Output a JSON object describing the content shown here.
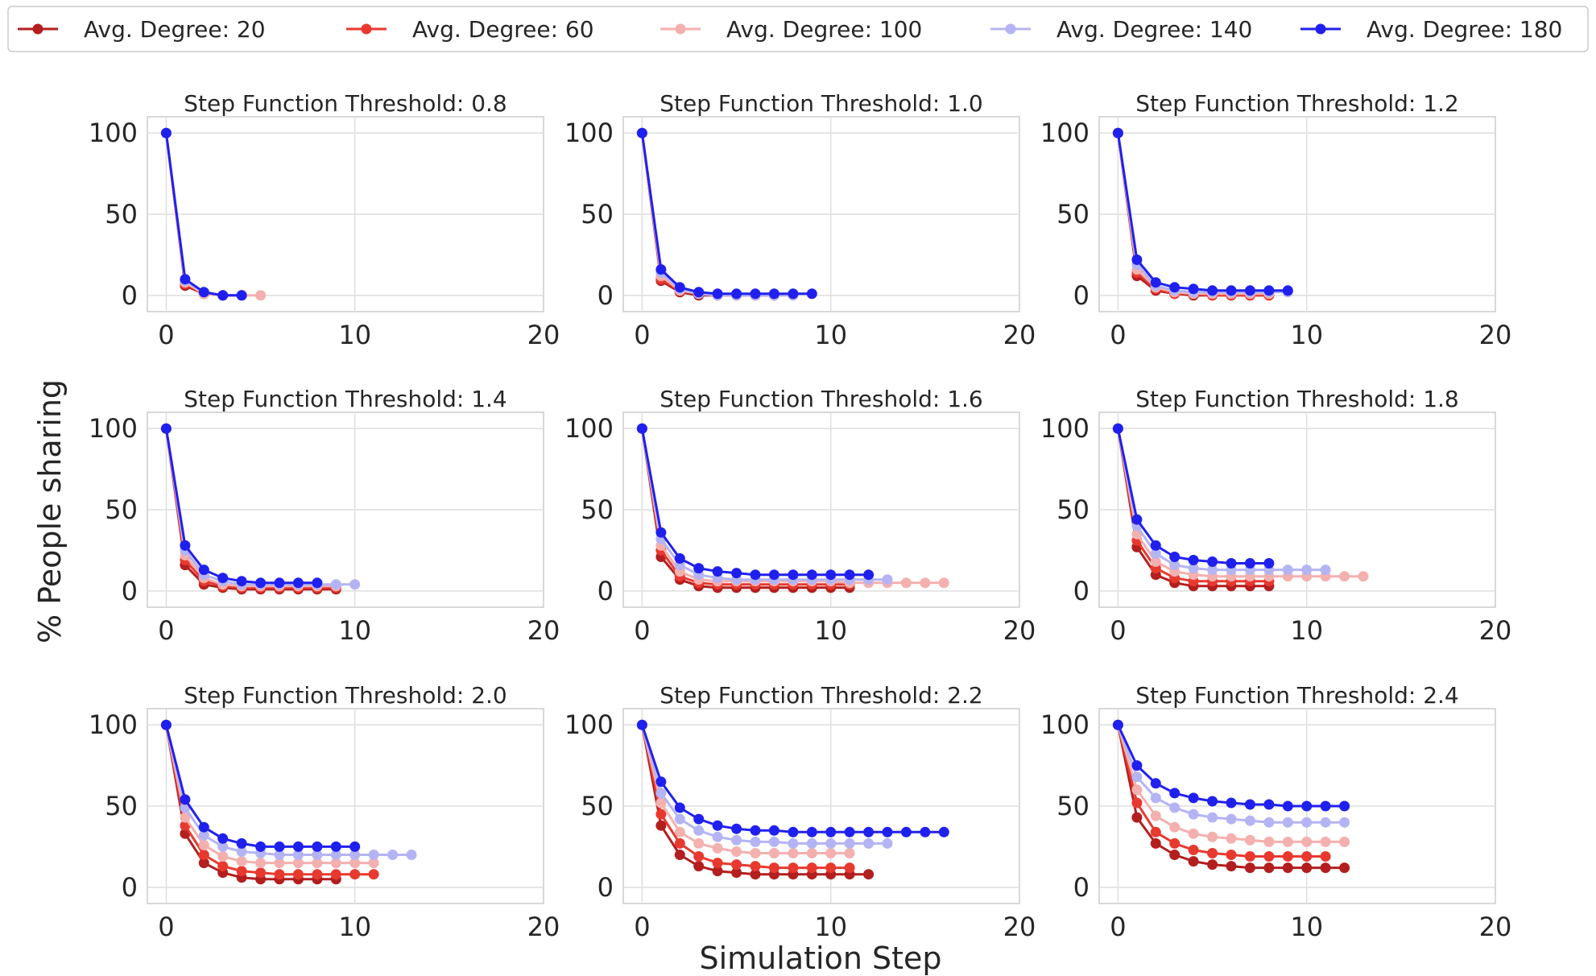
{
  "chart_data": {
    "type": "line",
    "xlabel": "Simulation Step",
    "ylabel": "% People sharing",
    "xlim": [
      -1,
      20
    ],
    "ylim": [
      -10,
      110
    ],
    "xticks": [
      0,
      10,
      20
    ],
    "yticks": [
      0,
      50,
      100
    ],
    "grid": true,
    "legend_position": "top",
    "series_names": [
      "Avg. Degree: 20",
      "Avg. Degree: 60",
      "Avg. Degree: 100",
      "Avg. Degree: 140",
      "Avg. Degree: 180"
    ],
    "series_colors": [
      "#b31e1e",
      "#e8392f",
      "#f4b0ae",
      "#b4b4f4",
      "#2020ee"
    ],
    "panels": [
      {
        "title": "Step Function Threshold: 0.8",
        "series": [
          {
            "name": "Avg. Degree: 20",
            "values": [
              100,
              6,
              1,
              0,
              0
            ]
          },
          {
            "name": "Avg. Degree: 60",
            "values": [
              100,
              7,
              1,
              0,
              0
            ]
          },
          {
            "name": "Avg. Degree: 100",
            "values": [
              100,
              8,
              1,
              0,
              0,
              0
            ]
          },
          {
            "name": "Avg. Degree: 140",
            "values": [
              100,
              9,
              2,
              0,
              0
            ]
          },
          {
            "name": "Avg. Degree: 180",
            "values": [
              100,
              10,
              2,
              0,
              0
            ]
          }
        ]
      },
      {
        "title": "Step Function Threshold: 1.0",
        "series": [
          {
            "name": "Avg. Degree: 20",
            "values": [
              100,
              9,
              2,
              0,
              0,
              0,
              0,
              0
            ]
          },
          {
            "name": "Avg. Degree: 60",
            "values": [
              100,
              10,
              3,
              1,
              0,
              0,
              0,
              0
            ]
          },
          {
            "name": "Avg. Degree: 100",
            "values": [
              100,
              12,
              3,
              1,
              0,
              0,
              0,
              0,
              0
            ]
          },
          {
            "name": "Avg. Degree: 140",
            "values": [
              100,
              14,
              4,
              1,
              0,
              0,
              0,
              0,
              0
            ]
          },
          {
            "name": "Avg. Degree: 180",
            "values": [
              100,
              16,
              5,
              2,
              1,
              1,
              1,
              1,
              1,
              1
            ]
          }
        ]
      },
      {
        "title": "Step Function Threshold: 1.2",
        "series": [
          {
            "name": "Avg. Degree: 20",
            "values": [
              100,
              12,
              3,
              1,
              0,
              0,
              0,
              0,
              0
            ]
          },
          {
            "name": "Avg. Degree: 60",
            "values": [
              100,
              14,
              4,
              1,
              1,
              0,
              0,
              0,
              0
            ]
          },
          {
            "name": "Avg. Degree: 100",
            "values": [
              100,
              16,
              5,
              2,
              1,
              1,
              1,
              1,
              1
            ]
          },
          {
            "name": "Avg. Degree: 140",
            "values": [
              100,
              19,
              6,
              3,
              2,
              2,
              2,
              2,
              2,
              2
            ]
          },
          {
            "name": "Avg. Degree: 180",
            "values": [
              100,
              22,
              8,
              5,
              4,
              3,
              3,
              3,
              3,
              3
            ]
          }
        ]
      },
      {
        "title": "Step Function Threshold: 1.4",
        "series": [
          {
            "name": "Avg. Degree: 20",
            "values": [
              100,
              16,
              4,
              2,
              1,
              1,
              1,
              1,
              1,
              1
            ]
          },
          {
            "name": "Avg. Degree: 60",
            "values": [
              100,
              19,
              6,
              3,
              2,
              2,
              2,
              2,
              2,
              2
            ]
          },
          {
            "name": "Avg. Degree: 100",
            "values": [
              100,
              22,
              8,
              4,
              3,
              3,
              3,
              3,
              3,
              3
            ]
          },
          {
            "name": "Avg. Degree: 140",
            "values": [
              100,
              25,
              10,
              6,
              4,
              4,
              4,
              4,
              4,
              4,
              4
            ]
          },
          {
            "name": "Avg. Degree: 180",
            "values": [
              100,
              28,
              13,
              8,
              6,
              5,
              5,
              5,
              5
            ]
          }
        ]
      },
      {
        "title": "Step Function Threshold: 1.6",
        "series": [
          {
            "name": "Avg. Degree: 20",
            "values": [
              100,
              21,
              7,
              3,
              2,
              2,
              2,
              2,
              2,
              2,
              2,
              2
            ]
          },
          {
            "name": "Avg. Degree: 60",
            "values": [
              100,
              25,
              9,
              5,
              4,
              4,
              4,
              4,
              4,
              4,
              4,
              4
            ]
          },
          {
            "name": "Avg. Degree: 100",
            "values": [
              100,
              28,
              12,
              7,
              6,
              6,
              6,
              6,
              6,
              6,
              6,
              5,
              5,
              5,
              5,
              5,
              5
            ]
          },
          {
            "name": "Avg. Degree: 140",
            "values": [
              100,
              32,
              16,
              10,
              8,
              7,
              7,
              7,
              7,
              7,
              7,
              7,
              7,
              7
            ]
          },
          {
            "name": "Avg. Degree: 180",
            "values": [
              100,
              36,
              20,
              14,
              12,
              11,
              10,
              10,
              10,
              10,
              10,
              10,
              10
            ]
          }
        ]
      },
      {
        "title": "Step Function Threshold: 1.8",
        "series": [
          {
            "name": "Avg. Degree: 20",
            "values": [
              100,
              27,
              10,
              5,
              3,
              3,
              3,
              3,
              3
            ]
          },
          {
            "name": "Avg. Degree: 60",
            "values": [
              100,
              31,
              14,
              8,
              6,
              6,
              6,
              6,
              6
            ]
          },
          {
            "name": "Avg. Degree: 100",
            "values": [
              100,
              35,
              18,
              12,
              10,
              9,
              9,
              9,
              9,
              9,
              9,
              9,
              9,
              9
            ]
          },
          {
            "name": "Avg. Degree: 140",
            "values": [
              100,
              40,
              23,
              16,
              14,
              13,
              13,
              13,
              13,
              13,
              13,
              13
            ]
          },
          {
            "name": "Avg. Degree: 180",
            "values": [
              100,
              44,
              28,
              21,
              19,
              18,
              17,
              17,
              17
            ]
          }
        ]
      },
      {
        "title": "Step Function Threshold: 2.0",
        "series": [
          {
            "name": "Avg. Degree: 20",
            "values": [
              100,
              33,
              15,
              9,
              6,
              5,
              5,
              5,
              5,
              5
            ]
          },
          {
            "name": "Avg. Degree: 60",
            "values": [
              100,
              38,
              20,
              13,
              10,
              9,
              8,
              8,
              8,
              8,
              8,
              8
            ]
          },
          {
            "name": "Avg. Degree: 100",
            "values": [
              100,
              43,
              26,
              19,
              16,
              15,
              15,
              15,
              15,
              15,
              15,
              15
            ]
          },
          {
            "name": "Avg. Degree: 140",
            "values": [
              100,
              49,
              32,
              25,
              22,
              21,
              20,
              20,
              20,
              20,
              20,
              20,
              20,
              20
            ]
          },
          {
            "name": "Avg. Degree: 180",
            "values": [
              100,
              54,
              37,
              30,
              27,
              25,
              25,
              25,
              25,
              25,
              25
            ]
          }
        ]
      },
      {
        "title": "Step Function Threshold: 2.2",
        "series": [
          {
            "name": "Avg. Degree: 20",
            "values": [
              100,
              38,
              20,
              13,
              10,
              9,
              8,
              8,
              8,
              8,
              8,
              8,
              8
            ]
          },
          {
            "name": "Avg. Degree: 60",
            "values": [
              100,
              45,
              27,
              19,
              15,
              14,
              13,
              12,
              12,
              12,
              12,
              12
            ]
          },
          {
            "name": "Avg. Degree: 100",
            "values": [
              100,
              52,
              34,
              27,
              24,
              22,
              21,
              21,
              21,
              21,
              21,
              21
            ]
          },
          {
            "name": "Avg. Degree: 140",
            "values": [
              100,
              58,
              42,
              35,
              31,
              29,
              28,
              28,
              27,
              27,
              27,
              27,
              27,
              27
            ]
          },
          {
            "name": "Avg. Degree: 180",
            "values": [
              100,
              65,
              49,
              42,
              38,
              36,
              35,
              35,
              34,
              34,
              34,
              34,
              34,
              34,
              34,
              34,
              34
            ]
          }
        ]
      },
      {
        "title": "Step Function Threshold: 2.4",
        "series": [
          {
            "name": "Avg. Degree: 20",
            "values": [
              100,
              43,
              27,
              20,
              16,
              14,
              13,
              12,
              12,
              12,
              12,
              12,
              12
            ]
          },
          {
            "name": "Avg. Degree: 60",
            "values": [
              100,
              52,
              34,
              27,
              23,
              21,
              20,
              19,
              19,
              19,
              19,
              19
            ]
          },
          {
            "name": "Avg. Degree: 100",
            "values": [
              100,
              60,
              44,
              37,
              33,
              31,
              30,
              29,
              28,
              28,
              28,
              28,
              28
            ]
          },
          {
            "name": "Avg. Degree: 140",
            "values": [
              100,
              68,
              55,
              49,
              45,
              43,
              42,
              41,
              40,
              40,
              40,
              40,
              40
            ]
          },
          {
            "name": "Avg. Degree: 180",
            "values": [
              100,
              75,
              64,
              58,
              55,
              53,
              52,
              51,
              51,
              50,
              50,
              50,
              50
            ]
          }
        ]
      }
    ]
  }
}
